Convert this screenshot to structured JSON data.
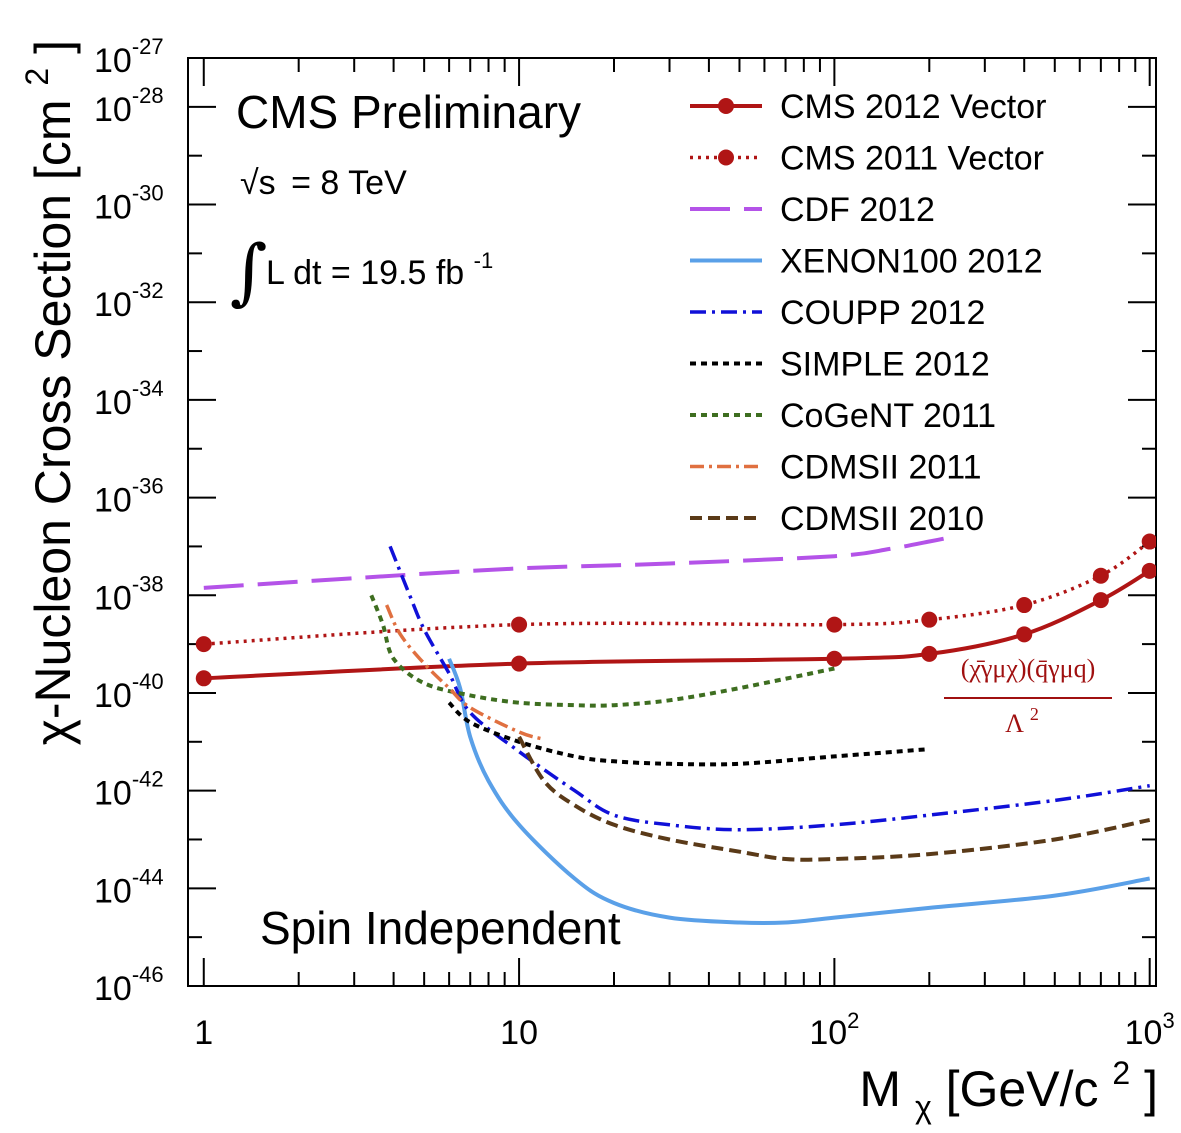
{
  "chart_data": {
    "type": "line",
    "title": "CMS Preliminary",
    "annotations": {
      "energy_sqrt": "√s",
      "energy_value": "= 8 TeV",
      "lumi_integral": "∫",
      "lumi_body": "L dt = 19.5 fb",
      "lumi_exp": "-1",
      "spin": "Spin Independent",
      "formula_numerator": "(χ̄γμχ)(q̄γμq)",
      "formula_denominator_base": "Λ",
      "formula_denominator_exp": "2"
    },
    "xlabel_main": "M",
    "xlabel_sub": "χ",
    "xlabel_unit": " [GeV/c",
    "xlabel_unit_exp": "2",
    "xlabel_close": "]",
    "ylabel_main": "χ-Nucleon Cross Section [cm",
    "ylabel_exp": "2",
    "ylabel_close": "]",
    "x_scale": "log",
    "y_scale": "log",
    "xlim_exp": [
      -0.05,
      3.02
    ],
    "ylim_exp": [
      -46,
      -27
    ],
    "x_ticks": [
      {
        "base": "1",
        "exp": ""
      },
      {
        "base": "10",
        "exp": ""
      },
      {
        "base": "10",
        "exp": "2"
      },
      {
        "base": "10",
        "exp": "3"
      }
    ],
    "y_ticks": [
      {
        "base": "10",
        "exp": "-46"
      },
      {
        "base": "10",
        "exp": "-44"
      },
      {
        "base": "10",
        "exp": "-42"
      },
      {
        "base": "10",
        "exp": "-40"
      },
      {
        "base": "10",
        "exp": "-38"
      },
      {
        "base": "10",
        "exp": "-36"
      },
      {
        "base": "10",
        "exp": "-34"
      },
      {
        "base": "10",
        "exp": "-32"
      },
      {
        "base": "10",
        "exp": "-30"
      },
      {
        "base": "10",
        "exp": "-28"
      },
      {
        "base": "10",
        "exp": "-27"
      }
    ],
    "legend_position": "top-right",
    "series": [
      {
        "name": "CMS 2012 Vector",
        "color": "#b01515",
        "dash": "",
        "width": 4,
        "markers": true,
        "x": [
          1,
          10,
          100,
          200,
          400,
          700,
          1000
        ],
        "y": [
          -39.7,
          -39.4,
          -39.3,
          -39.2,
          -38.8,
          -38.1,
          -37.5
        ],
        "marker_x": [
          1,
          10,
          100,
          200,
          400,
          700,
          1000
        ]
      },
      {
        "name": "CMS 2011 Vector",
        "color": "#b01515",
        "dash": "3,5",
        "width": 3.5,
        "markers": true,
        "x": [
          1,
          10,
          100,
          200,
          400,
          700,
          1000
        ],
        "y": [
          -39.0,
          -38.6,
          -38.6,
          -38.5,
          -38.2,
          -37.6,
          -36.9
        ],
        "marker_x": [
          1,
          10,
          100,
          200,
          400,
          700,
          1000
        ]
      },
      {
        "name": "CDF 2012",
        "color": "#b453e8",
        "dash": "40,14",
        "width": 4,
        "markers": false,
        "x": [
          1,
          3,
          10,
          30,
          100,
          150,
          200,
          230
        ],
        "y": [
          -37.85,
          -37.65,
          -37.45,
          -37.35,
          -37.2,
          -37.05,
          -36.9,
          -36.82
        ]
      },
      {
        "name": "XENON100 2012",
        "color": "#5aa0e8",
        "dash": "",
        "width": 4,
        "markers": false,
        "x": [
          6,
          6.5,
          7,
          8,
          10,
          15,
          20,
          30,
          50,
          70,
          100,
          200,
          500,
          1000
        ],
        "y": [
          -39.3,
          -39.9,
          -40.9,
          -41.8,
          -42.7,
          -43.8,
          -44.3,
          -44.6,
          -44.7,
          -44.7,
          -44.6,
          -44.4,
          -44.15,
          -43.8
        ]
      },
      {
        "name": "COUPP 2012",
        "color": "#1010d8",
        "dash": "16,6,3,6",
        "width": 3.5,
        "markers": false,
        "x": [
          3.9,
          4.5,
          5,
          6,
          7,
          10,
          15,
          20,
          30,
          50,
          100,
          200,
          500,
          1000
        ],
        "y": [
          -37.0,
          -38.0,
          -38.7,
          -39.6,
          -40.4,
          -41.2,
          -42.0,
          -42.5,
          -42.7,
          -42.8,
          -42.7,
          -42.5,
          -42.2,
          -41.9
        ]
      },
      {
        "name": "SIMPLE 2012",
        "color": "#000000",
        "dash": "6,5",
        "width": 4,
        "markers": false,
        "x": [
          6,
          7,
          10,
          15,
          20,
          30,
          50,
          100,
          200
        ],
        "y": [
          -40.2,
          -40.6,
          -41.0,
          -41.3,
          -41.4,
          -41.45,
          -41.45,
          -41.3,
          -41.15
        ]
      },
      {
        "name": "CoGeNT 2011",
        "color": "#3e6e20",
        "dash": "6,5",
        "width": 4,
        "markers": false,
        "x": [
          3.4,
          3.7,
          4,
          5,
          7,
          10,
          15,
          20,
          30,
          50,
          100
        ],
        "y": [
          -38.0,
          -38.6,
          -39.3,
          -39.8,
          -40.05,
          -40.2,
          -40.25,
          -40.25,
          -40.15,
          -39.9,
          -39.5
        ]
      },
      {
        "name": "CDMSII 2011",
        "color": "#e07040",
        "dash": "14,5,3,5",
        "width": 3.5,
        "markers": false,
        "x": [
          3.8,
          4.2,
          5,
          6,
          7,
          10,
          12
        ],
        "y": [
          -38.2,
          -38.8,
          -39.4,
          -39.9,
          -40.3,
          -40.8,
          -40.95
        ]
      },
      {
        "name": "CDMSII 2010",
        "color": "#5a3a18",
        "dash": "12,6",
        "width": 4,
        "markers": false,
        "x": [
          10,
          12,
          15,
          20,
          30,
          50,
          70,
          100,
          200,
          500,
          1000
        ],
        "y": [
          -40.9,
          -41.8,
          -42.3,
          -42.7,
          -43.0,
          -43.25,
          -43.4,
          -43.4,
          -43.3,
          -43.0,
          -42.6
        ]
      }
    ]
  }
}
